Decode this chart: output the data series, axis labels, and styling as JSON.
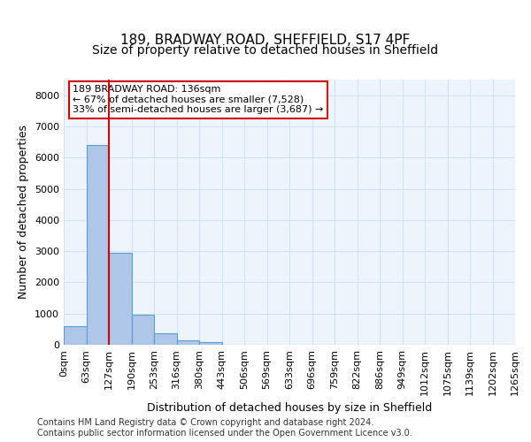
{
  "title1": "189, BRADWAY ROAD, SHEFFIELD, S17 4PF",
  "title2": "Size of property relative to detached houses in Sheffield",
  "xlabel": "Distribution of detached houses by size in Sheffield",
  "ylabel": "Number of detached properties",
  "bin_labels": [
    "0sqm",
    "63sqm",
    "127sqm",
    "190sqm",
    "253sqm",
    "316sqm",
    "380sqm",
    "443sqm",
    "506sqm",
    "569sqm",
    "633sqm",
    "696sqm",
    "759sqm",
    "822sqm",
    "886sqm",
    "949sqm",
    "1012sqm",
    "1075sqm",
    "1139sqm",
    "1202sqm",
    "1265sqm"
  ],
  "bar_values": [
    600,
    6400,
    2950,
    975,
    370,
    145,
    80,
    0,
    0,
    0,
    0,
    0,
    0,
    0,
    0,
    0,
    0,
    0,
    0,
    0
  ],
  "bar_color": "#aec6e8",
  "bar_edge_color": "#5a9fd4",
  "grid_color": "#d0e4f0",
  "background_color": "#eef4fb",
  "vline_color": "#cc0000",
  "annotation_text": "189 BRADWAY ROAD: 136sqm\n← 67% of detached houses are smaller (7,528)\n33% of semi-detached houses are larger (3,687) →",
  "annotation_box_color": "#cc0000",
  "ylim": [
    0,
    8500
  ],
  "yticks": [
    0,
    1000,
    2000,
    3000,
    4000,
    5000,
    6000,
    7000,
    8000
  ],
  "footer": "Contains HM Land Registry data © Crown copyright and database right 2024.\nContains public sector information licensed under the Open Government Licence v3.0.",
  "title1_fontsize": 11,
  "title2_fontsize": 10,
  "axis_label_fontsize": 9,
  "tick_fontsize": 8,
  "footer_fontsize": 7
}
